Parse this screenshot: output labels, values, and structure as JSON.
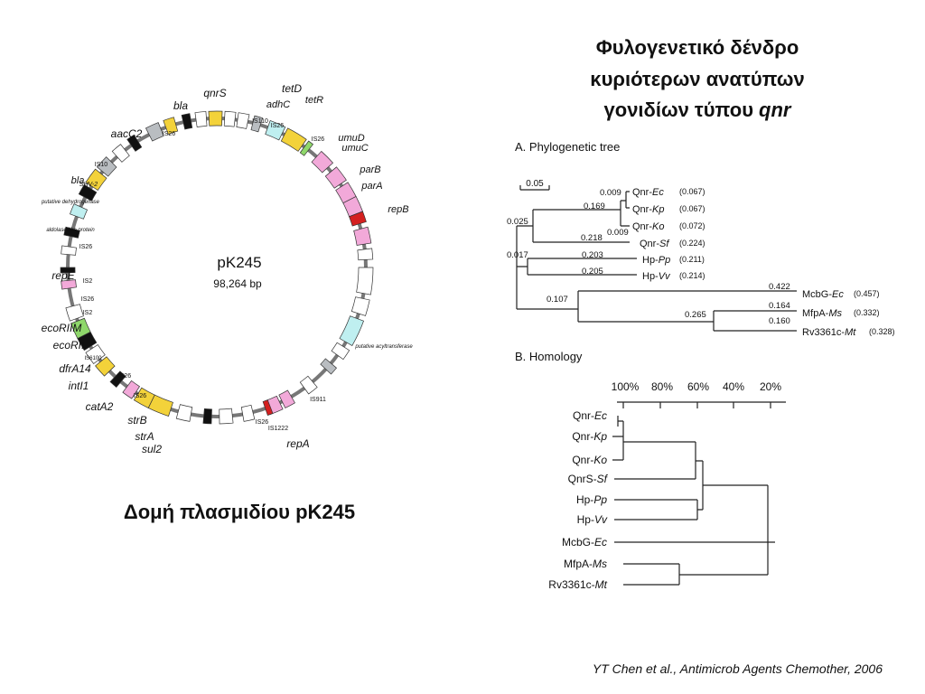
{
  "title": {
    "line1": "Φυλογενετικό δένδρο",
    "line2": "κυριότερων ανατύπων",
    "line3": "γονιδίων τύπου",
    "line3_italic": "qnr"
  },
  "plasmid": {
    "name": "pK245",
    "size": "98,264 bp",
    "caption": "Δομή πλασμιδίου pK245",
    "labels": [
      "qnrS",
      "bla",
      "tetD",
      "adhC",
      "tetR",
      "aacC2",
      "IS26",
      "IS110",
      "IS26",
      "IS26",
      "umuD",
      "umuC",
      "IS10",
      "bla",
      "SHV-2",
      "parB",
      "parA",
      "putative dehydrogenase",
      "repB",
      "aldolase-like protein",
      "IS26",
      "repE",
      "IS2",
      "IS26",
      "IS2",
      "ecoRIIM",
      "ecoRII",
      "IS6100",
      "dfrA14",
      "IS26",
      "intI1",
      "IS26",
      "catA2",
      "strB",
      "strA",
      "sul2",
      "IS26",
      "IS1222",
      "IS911",
      "repA",
      "putative acyltransferase"
    ]
  },
  "panel_a": {
    "heading": "A. Phylogenetic tree",
    "scale": "0.05",
    "leaves": [
      {
        "prefix": "Qnr-",
        "italic": "Ec",
        "distance": "(0.067)"
      },
      {
        "prefix": "Qnr-",
        "italic": "Kp",
        "distance": "(0.067)"
      },
      {
        "prefix": "Qnr-",
        "italic": "Ko",
        "distance": "(0.072)"
      },
      {
        "prefix": "Qnr-",
        "italic": "Sf",
        "distance": "(0.224)"
      },
      {
        "prefix": "Hp-",
        "italic": "Pp",
        "distance": "(0.211)"
      },
      {
        "prefix": "Hp-",
        "italic": "Vv",
        "distance": "(0.214)"
      },
      {
        "prefix": "McbG-",
        "italic": "Ec",
        "distance": "(0.457)"
      },
      {
        "prefix": "MfpA-",
        "italic": "Ms",
        "distance": "(0.332)"
      },
      {
        "prefix": "Rv3361c-",
        "italic": "Mt",
        "distance": "(0.328)"
      }
    ],
    "branch_lengths": [
      "0.009",
      "0.169",
      "0.009",
      "0.218",
      "0.025",
      "0.017",
      "0.203",
      "0.205",
      "0.107",
      "0.422",
      "0.164",
      "0.265",
      "0.160"
    ]
  },
  "panel_b": {
    "heading": "B. Homology",
    "axis": [
      "100%",
      "80%",
      "60%",
      "40%",
      "20%"
    ],
    "leaves": [
      {
        "prefix": "Qnr-",
        "italic": "Ec"
      },
      {
        "prefix": "Qnr-",
        "italic": "Kp"
      },
      {
        "prefix": "Qnr-",
        "italic": "Ko"
      },
      {
        "prefix": "QnrS-",
        "italic": "Sf"
      },
      {
        "prefix": "Hp-",
        "italic": "Pp"
      },
      {
        "prefix": "Hp-",
        "italic": "Vv"
      },
      {
        "prefix": "McbG-",
        "italic": "Ec"
      },
      {
        "prefix": "MfpA-",
        "italic": "Ms"
      },
      {
        "prefix": "Rv3361c-",
        "italic": "Mt"
      }
    ]
  },
  "citation": "YT Chen et al., Antimicrob Agents Chemother, 2006"
}
